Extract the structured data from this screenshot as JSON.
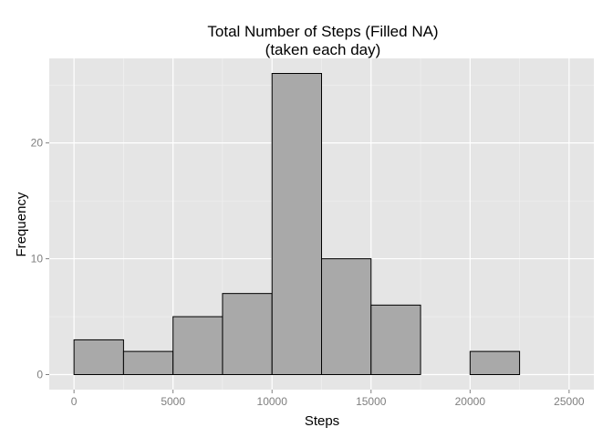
{
  "chart_data": {
    "type": "bar",
    "title": "Total Number of Steps (Filled NA)",
    "subtitle": "(taken each day)",
    "xlabel": "Steps",
    "ylabel": "Frequency",
    "bins": [
      {
        "start": 0,
        "end": 2500,
        "count": 3
      },
      {
        "start": 2500,
        "end": 5000,
        "count": 2
      },
      {
        "start": 5000,
        "end": 7500,
        "count": 5
      },
      {
        "start": 7500,
        "end": 10000,
        "count": 7
      },
      {
        "start": 10000,
        "end": 12500,
        "count": 26
      },
      {
        "start": 12500,
        "end": 15000,
        "count": 10
      },
      {
        "start": 15000,
        "end": 17500,
        "count": 6
      },
      {
        "start": 17500,
        "end": 20000,
        "count": 0
      },
      {
        "start": 20000,
        "end": 22500,
        "count": 2
      },
      {
        "start": 22500,
        "end": 25000,
        "count": 0
      }
    ],
    "xlim": [
      -1250,
      26250
    ],
    "ylim": [
      -1.3,
      27.3
    ],
    "xticks": [
      0,
      5000,
      10000,
      15000,
      20000,
      25000
    ],
    "xtick_labels": [
      "0",
      "5000",
      "10000",
      "15000",
      "20000",
      "25000"
    ],
    "yticks": [
      0,
      10,
      20
    ],
    "ytick_labels": [
      "0",
      "10",
      "20"
    ],
    "grid": true,
    "colors": {
      "panel_background": "#e5e5e5",
      "major_grid": "#ffffff",
      "minor_grid": "#f2f2f2",
      "bar_fill": "#a9a9a9",
      "bar_outline": "#000000",
      "tick_text": "#7f7f7f"
    }
  }
}
